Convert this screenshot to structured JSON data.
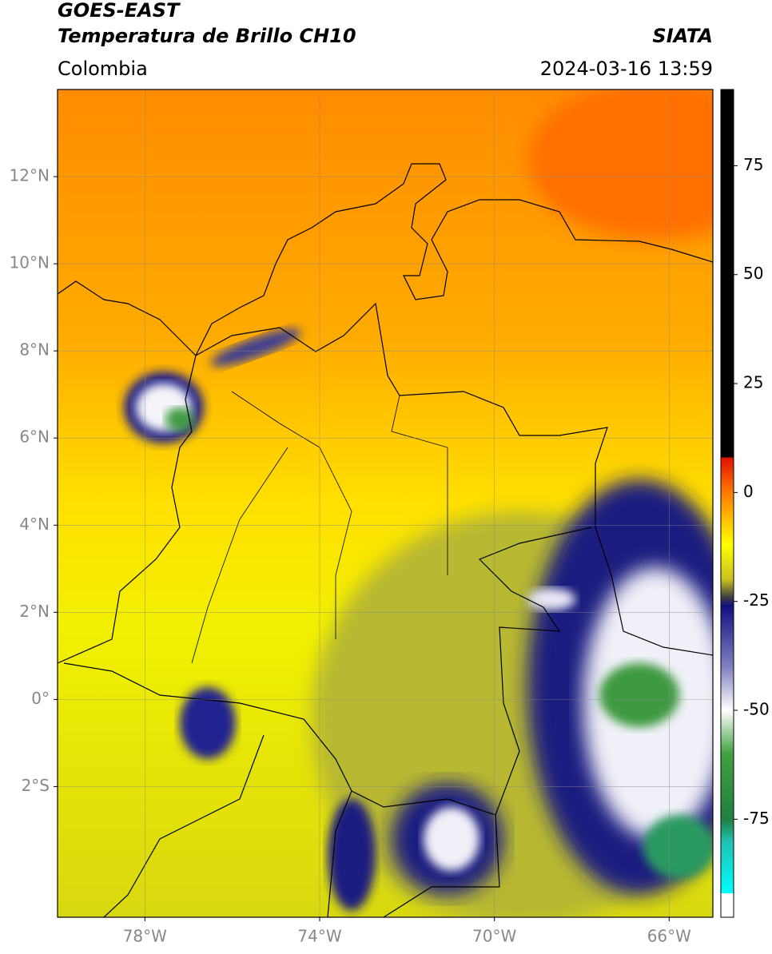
{
  "header": {
    "title": "GOES-EAST",
    "subtitle": "Temperatura de Brillo CH10",
    "region": "Colombia",
    "source": "SIATA",
    "datetime": "2024-03-16 13:59"
  },
  "map": {
    "type": "map",
    "xlim": [
      -80,
      -65
    ],
    "ylim": [
      -5,
      14
    ],
    "grid": true,
    "xticks": [
      {
        "value": -78,
        "label": "78°W"
      },
      {
        "value": -74,
        "label": "74°W"
      },
      {
        "value": -70,
        "label": "70°W"
      },
      {
        "value": -66,
        "label": "66°W"
      }
    ],
    "yticks": [
      {
        "value": 12,
        "label": "12°N"
      },
      {
        "value": 10,
        "label": "10°N"
      },
      {
        "value": 8,
        "label": "8°N"
      },
      {
        "value": 6,
        "label": "6°N"
      },
      {
        "value": 4,
        "label": "4°N"
      },
      {
        "value": 2,
        "label": "2°N"
      },
      {
        "value": 0,
        "label": "0°"
      },
      {
        "value": -2,
        "label": "2°S"
      }
    ]
  },
  "colorbar": {
    "lim": [
      -97.5,
      92.5
    ],
    "ticks": [
      75,
      50,
      25,
      0,
      -25,
      -50,
      -75
    ],
    "colormap": [
      {
        "value": 92.5,
        "color": "#000000"
      },
      {
        "value": 8,
        "color": "#000000"
      },
      {
        "value": 8,
        "color": "#e01000"
      },
      {
        "value": 0,
        "color": "#ff7a00"
      },
      {
        "value": -12,
        "color": "#ffff00"
      },
      {
        "value": -20,
        "color": "#c8c020"
      },
      {
        "value": -24,
        "color": "#404040"
      },
      {
        "value": -26,
        "color": "#101080"
      },
      {
        "value": -40,
        "color": "#8080c0"
      },
      {
        "value": -50,
        "color": "#ffffff"
      },
      {
        "value": -60,
        "color": "#40a040"
      },
      {
        "value": -75,
        "color": "#208040"
      },
      {
        "value": -80,
        "color": "#20c0b0"
      },
      {
        "value": -92,
        "color": "#00ffff"
      },
      {
        "value": -92,
        "color": "#ffffff"
      },
      {
        "value": -97.5,
        "color": "#ffffff"
      }
    ]
  }
}
